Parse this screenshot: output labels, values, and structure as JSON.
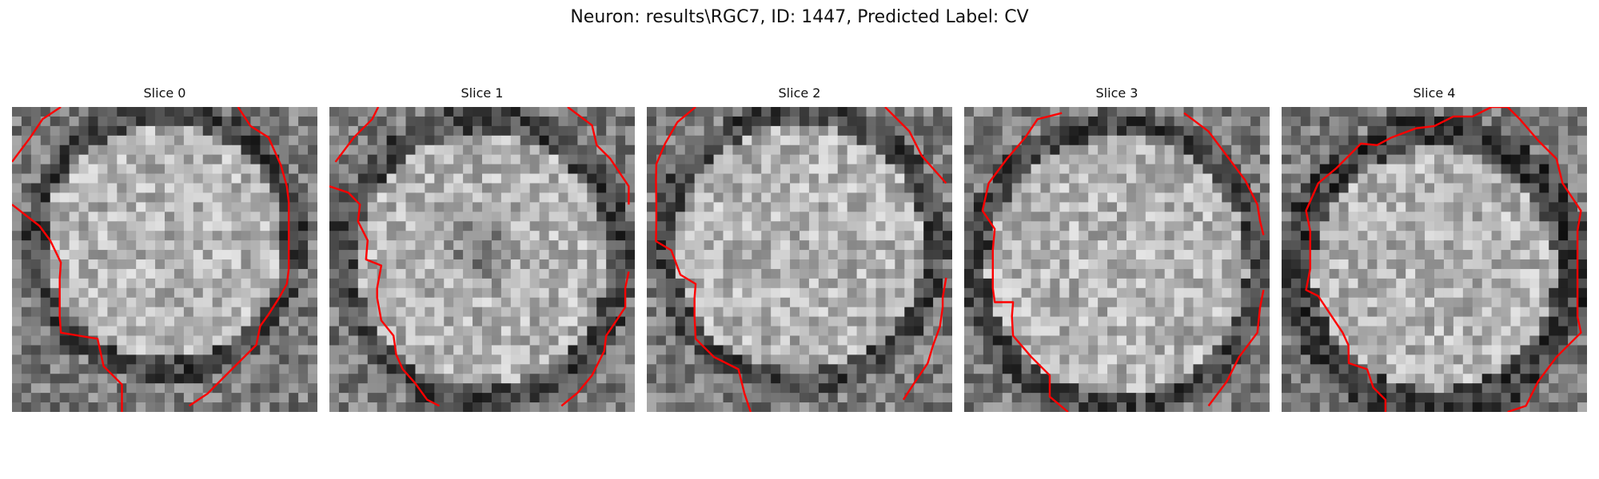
{
  "figure": {
    "title": "Neuron: results\\RGC7, ID: 1447, Predicted Label: CV"
  },
  "colors": {
    "contour": "#ff0000",
    "background": "#ffffff"
  },
  "panels": [
    {
      "title": "Slice 0"
    },
    {
      "title": "Slice 1"
    },
    {
      "title": "Slice 2"
    },
    {
      "title": "Slice 3"
    },
    {
      "title": "Slice 4"
    }
  ]
}
